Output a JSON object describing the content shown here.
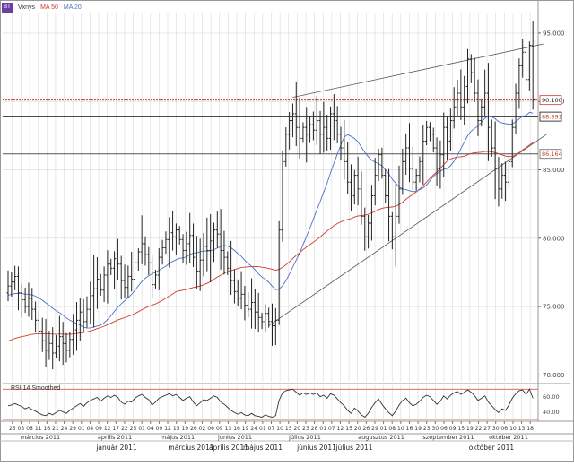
{
  "legend": {
    "logo": "BT",
    "symbol": "Vxnys",
    "ma50": "MA 50",
    "ma20": "MA 20"
  },
  "rsi_label": "RSI 14 Smoothed",
  "colors": {
    "price": "#222222",
    "ma50": "#d23a2a",
    "ma20": "#4a72c8",
    "hline_red": "#d23a2a",
    "grid": "#d8d8d8",
    "rsi_line": "#333333"
  },
  "chart_data": [
    {
      "type": "bar",
      "subtype": "ohlc",
      "symbol": "Vxnys",
      "ylim": [
        69.5,
        96.5
      ],
      "yticks": [
        "95.000",
        "90.000",
        "85.000",
        "80.000",
        "75.000",
        "70.000"
      ],
      "ytick_values": [
        95,
        90,
        85,
        80,
        75,
        70
      ],
      "price_labels": [
        {
          "value": 90.1,
          "text": "90.100",
          "style": "red"
        },
        {
          "value": 88.891,
          "text": "88.891",
          "style": "black-red-text"
        },
        {
          "value": 86.164,
          "text": "86.164",
          "style": "gray-red-text"
        }
      ],
      "close": [
        76.5,
        76.8,
        77.2,
        76.0,
        75.5,
        75.0,
        75.6,
        74.8,
        74.0,
        73.2,
        72.5,
        71.8,
        72.3,
        71.6,
        72.1,
        72.8,
        72.3,
        71.8,
        72.6,
        73.3,
        74.0,
        74.6,
        73.9,
        74.8,
        75.8,
        76.3,
        77.0,
        76.2,
        77.3,
        78.1,
        77.8,
        78.5,
        78.1,
        76.9,
        76.4,
        77.2,
        77.0,
        78.2,
        79.0,
        79.6,
        78.8,
        78.2,
        76.6,
        77.3,
        78.6,
        79.3,
        79.9,
        80.4,
        80.1,
        80.6,
        79.9,
        79.1,
        79.6,
        80.2,
        78.6,
        77.6,
        78.4,
        79.4,
        79.1,
        79.8,
        80.6,
        80.3,
        79.1,
        78.6,
        77.8,
        76.9,
        76.1,
        75.6,
        75.9,
        75.1,
        74.8,
        75.3,
        74.6,
        74.2,
        73.9,
        74.5,
        73.9,
        73.6,
        74.0,
        80.6,
        85.6,
        87.6,
        88.6,
        89.1,
        88.1,
        87.3,
        88.1,
        87.6,
        88.3,
        87.9,
        88.6,
        87.6,
        88.1,
        87.3,
        89.1,
        88.6,
        87.6,
        86.6,
        85.6,
        84.1,
        83.1,
        84.6,
        83.6,
        81.6,
        80.1,
        81.1,
        83.1,
        84.6,
        86.1,
        84.6,
        83.1,
        81.6,
        80.1,
        81.6,
        83.6,
        85.6,
        86.6,
        85.1,
        84.1,
        84.6,
        85.6,
        87.1,
        88.1,
        87.6,
        86.6,
        85.1,
        86.1,
        88.1,
        87.1,
        88.6,
        89.6,
        90.6,
        89.6,
        91.1,
        93.1,
        92.1,
        90.6,
        88.6,
        89.6,
        90.6,
        88.1,
        86.6,
        85.1,
        83.6,
        84.6,
        84.1,
        85.6,
        88.1,
        90.6,
        92.6,
        93.6,
        91.6,
        94.1,
        90.1
      ],
      "ma50_start_value": 72.4,
      "ma20_start_value": 75.8,
      "date_ticks": [
        "23",
        "03",
        "08",
        "11",
        "16",
        "21",
        "24",
        "29",
        "01",
        "04",
        "09",
        "12",
        "17",
        "22",
        "25",
        "01",
        "04",
        "09",
        "12",
        "15",
        "19",
        "26",
        "02",
        "06",
        "09",
        "13",
        "16",
        "19",
        "24",
        "01",
        "07",
        "10",
        "15",
        "20",
        "23",
        "28",
        "01",
        "07",
        "12",
        "15",
        "20",
        "26",
        "29",
        "01",
        "08",
        "10",
        "16",
        "19",
        "23",
        "30",
        "06",
        "09",
        "15",
        "19",
        "22",
        "27",
        "30",
        "06",
        "10",
        "13",
        "18"
      ],
      "month_labels": [
        "március 2011",
        "április 2011",
        "május 2011",
        "június 2011",
        "július 2011",
        "augusztus 2011",
        "szeptember 2011",
        "október 2011"
      ],
      "bottom_labels": [
        "január 2011",
        "március 2011",
        "április 2011",
        "május 2011",
        "június 2011",
        "július 2011",
        "október 2011"
      ]
    },
    {
      "type": "line",
      "name": "RSI 14 Smoothed",
      "ylim": [
        30,
        75
      ],
      "yticks": [
        "60.00",
        "40.00"
      ],
      "ytick_values": [
        60,
        40
      ],
      "threshold_lines": [
        70,
        30
      ],
      "values": [
        48,
        49,
        51,
        49,
        47,
        44,
        46,
        43,
        41,
        38,
        36,
        35,
        38,
        36,
        39,
        42,
        40,
        38,
        42,
        45,
        48,
        51,
        47,
        52,
        55,
        57,
        59,
        54,
        58,
        61,
        59,
        62,
        59,
        53,
        50,
        54,
        53,
        58,
        61,
        63,
        59,
        56,
        49,
        53,
        58,
        60,
        62,
        64,
        61,
        63,
        59,
        55,
        58,
        60,
        53,
        48,
        52,
        56,
        55,
        58,
        61,
        59,
        53,
        50,
        46,
        42,
        39,
        37,
        39,
        36,
        35,
        38,
        35,
        34,
        33,
        36,
        34,
        33,
        35,
        55,
        65,
        68,
        69,
        70,
        66,
        62,
        65,
        63,
        65,
        63,
        65,
        60,
        62,
        58,
        64,
        62,
        57,
        52,
        48,
        42,
        38,
        45,
        41,
        36,
        33,
        38,
        46,
        52,
        57,
        50,
        44,
        39,
        35,
        41,
        49,
        55,
        58,
        52,
        48,
        50,
        54,
        59,
        62,
        60,
        55,
        50,
        54,
        61,
        57,
        62,
        65,
        67,
        63,
        66,
        69,
        66,
        61,
        55,
        58,
        61,
        53,
        48,
        43,
        39,
        44,
        42,
        49,
        58,
        64,
        68,
        69,
        63,
        70,
        58
      ]
    }
  ]
}
